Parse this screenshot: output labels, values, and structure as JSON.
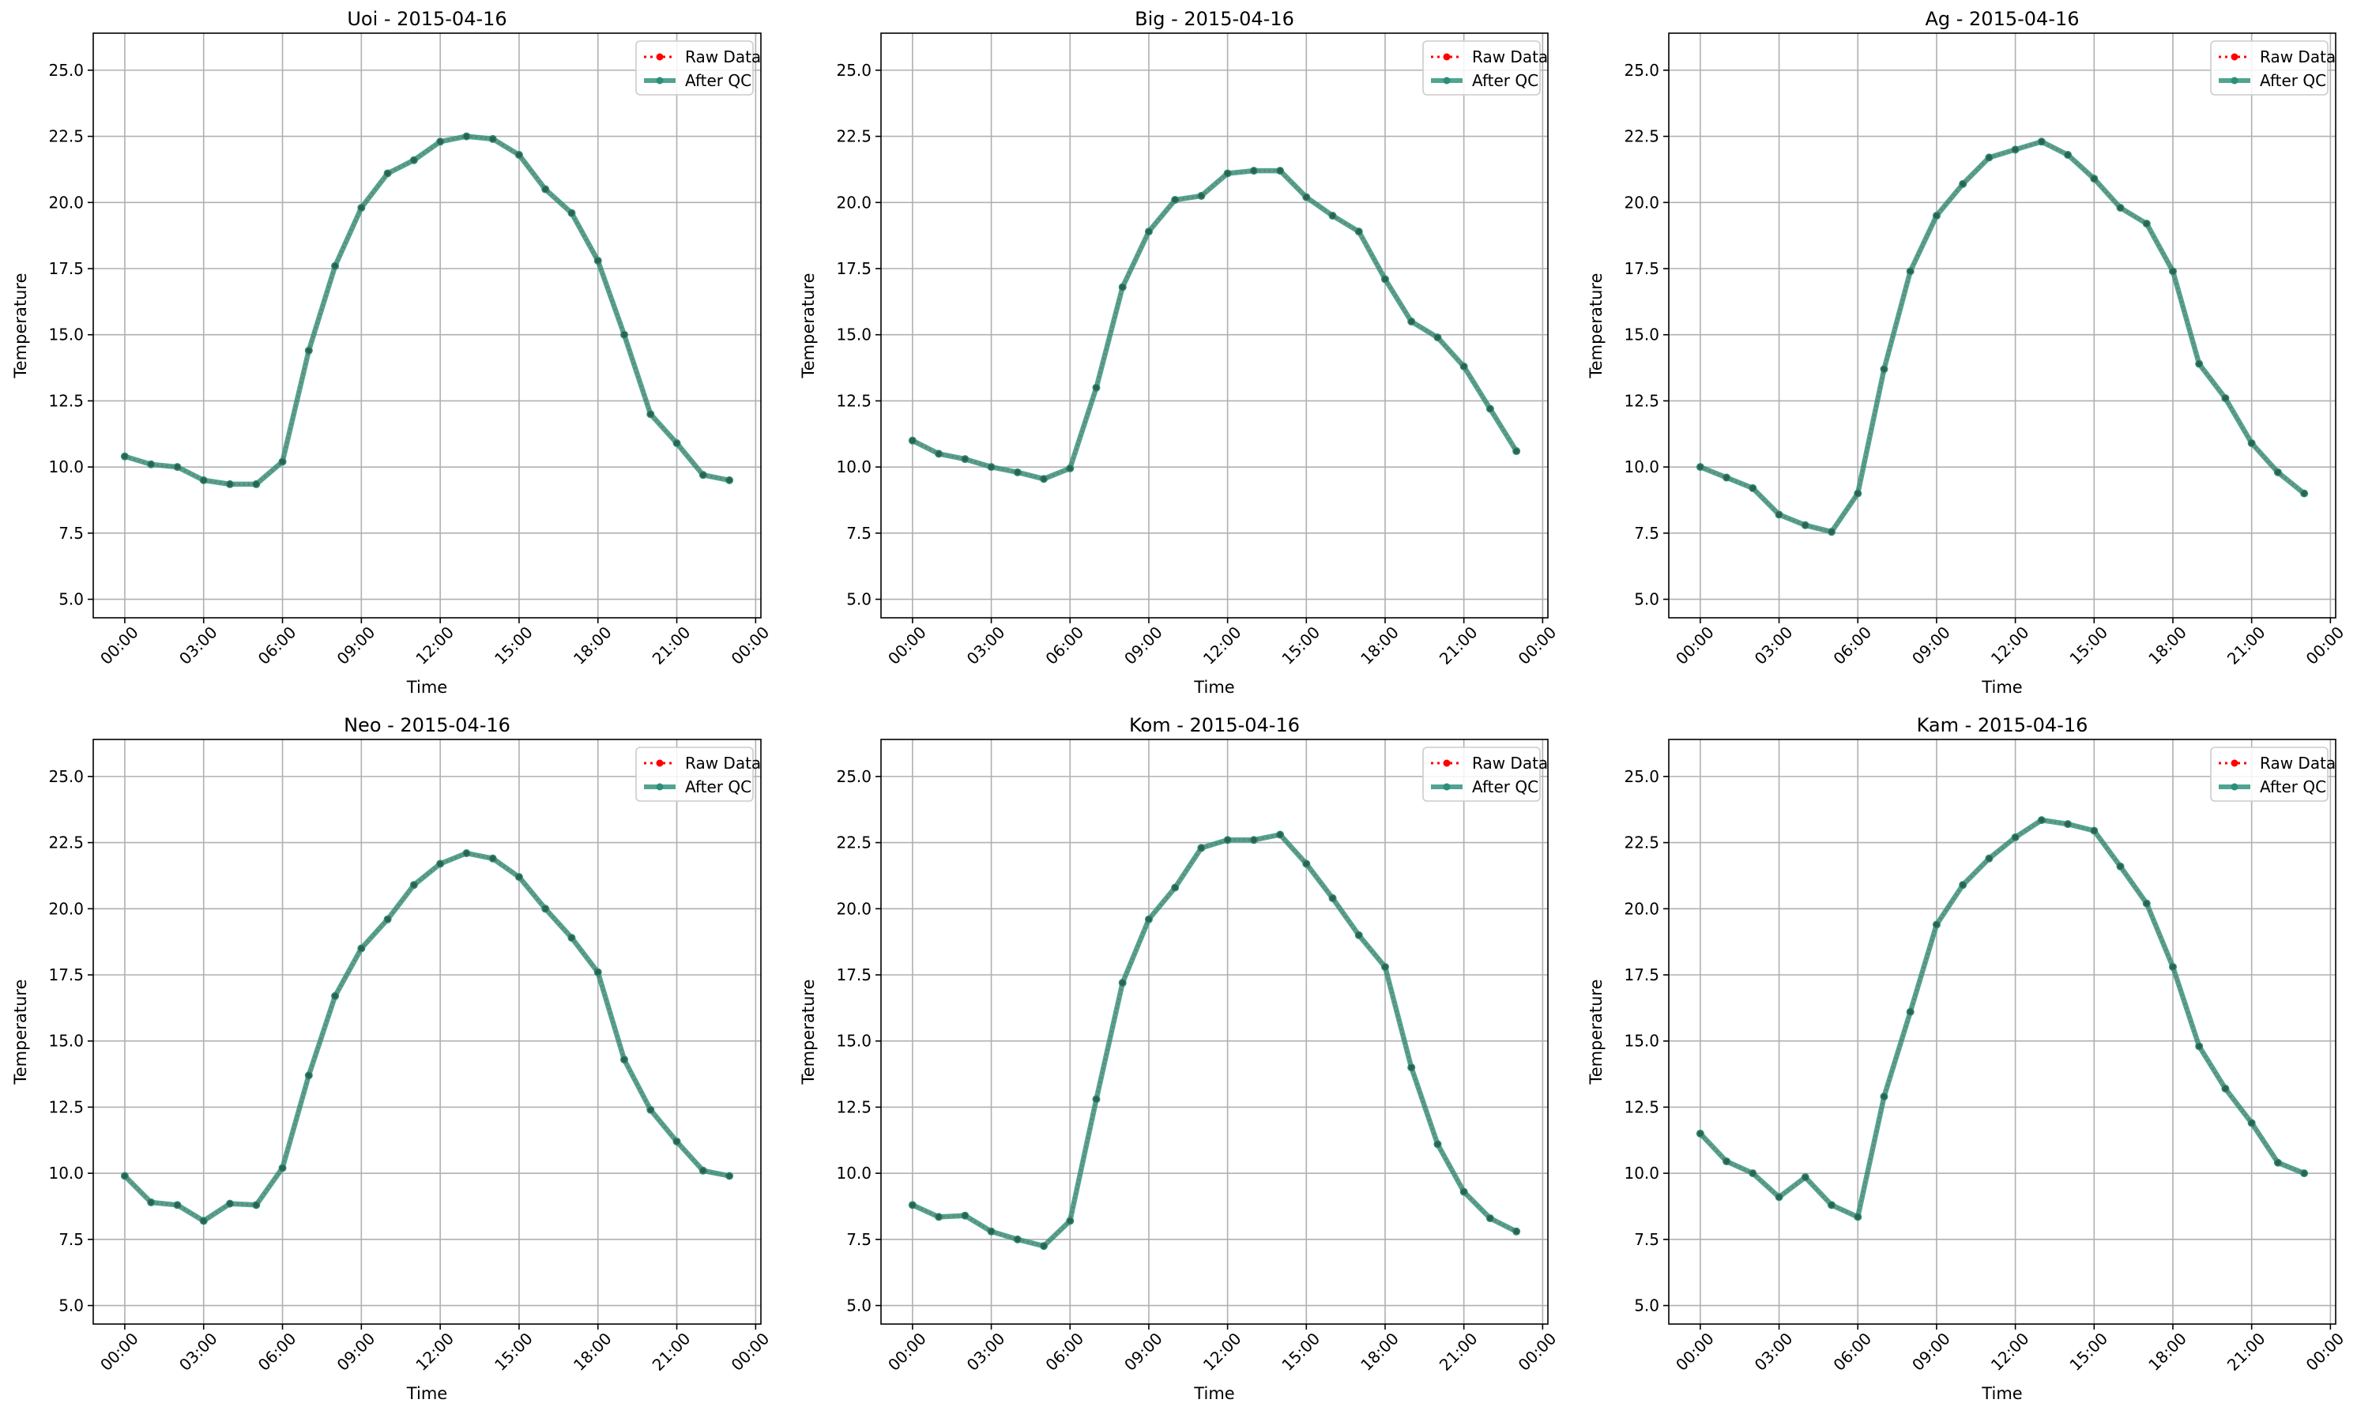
{
  "chart_data": [
    {
      "type": "line",
      "title": "Uoi - 2015-04-16",
      "xlabel": "Time",
      "ylabel": "Temperature",
      "x_hours": [
        0,
        1,
        2,
        3,
        4,
        5,
        6,
        7,
        8,
        9,
        10,
        11,
        12,
        13,
        14,
        15,
        16,
        17,
        18,
        19,
        20,
        21,
        22,
        23
      ],
      "x_range_hours": [
        -1.2,
        24.2
      ],
      "x_ticks": [
        "00:00",
        "03:00",
        "06:00",
        "09:00",
        "12:00",
        "15:00",
        "18:00",
        "21:00",
        "00:00"
      ],
      "y_ticks": [
        "5.0",
        "7.5",
        "10.0",
        "12.5",
        "15.0",
        "17.5",
        "20.0",
        "22.5",
        "25.0"
      ],
      "ylim": [
        4.3,
        26.4
      ],
      "grid": true,
      "legend": "top-right",
      "series": [
        {
          "name": "Raw Data",
          "color": "#ff0000",
          "values": [
            10.4,
            10.1,
            10.0,
            9.5,
            9.35,
            9.35,
            10.2,
            14.4,
            17.6,
            19.8,
            21.1,
            21.6,
            22.3,
            22.5,
            22.4,
            21.8,
            20.5,
            19.6,
            17.8,
            15.0,
            12.0,
            10.9,
            9.7,
            9.5
          ]
        },
        {
          "name": "After QC",
          "color": "#2a9078",
          "values": [
            10.4,
            10.1,
            10.0,
            9.5,
            9.35,
            9.35,
            10.2,
            14.4,
            17.6,
            19.8,
            21.1,
            21.6,
            22.3,
            22.5,
            22.4,
            21.8,
            20.5,
            19.6,
            17.8,
            15.0,
            12.0,
            10.9,
            9.7,
            9.5
          ]
        }
      ]
    },
    {
      "type": "line",
      "title": "Big - 2015-04-16",
      "xlabel": "Time",
      "ylabel": "Temperature",
      "x_hours": [
        0,
        1,
        2,
        3,
        4,
        5,
        6,
        7,
        8,
        9,
        10,
        11,
        12,
        13,
        14,
        15,
        16,
        17,
        18,
        19,
        20,
        21,
        22,
        23
      ],
      "x_range_hours": [
        -1.2,
        24.2
      ],
      "x_ticks": [
        "00:00",
        "03:00",
        "06:00",
        "09:00",
        "12:00",
        "15:00",
        "18:00",
        "21:00",
        "00:00"
      ],
      "y_ticks": [
        "5.0",
        "7.5",
        "10.0",
        "12.5",
        "15.0",
        "17.5",
        "20.0",
        "22.5",
        "25.0"
      ],
      "ylim": [
        4.3,
        26.4
      ],
      "grid": true,
      "legend": "top-right",
      "series": [
        {
          "name": "Raw Data",
          "color": "#ff0000",
          "values": [
            11.0,
            10.5,
            10.3,
            10.0,
            9.8,
            9.55,
            9.95,
            13.0,
            16.8,
            18.9,
            20.1,
            20.25,
            21.1,
            21.2,
            21.2,
            20.2,
            19.5,
            18.9,
            17.1,
            15.5,
            14.9,
            13.8,
            12.2,
            10.6
          ]
        },
        {
          "name": "After QC",
          "color": "#2a9078",
          "values": [
            11.0,
            10.5,
            10.3,
            10.0,
            9.8,
            9.55,
            9.95,
            13.0,
            16.8,
            18.9,
            20.1,
            20.25,
            21.1,
            21.2,
            21.2,
            20.2,
            19.5,
            18.9,
            17.1,
            15.5,
            14.9,
            13.8,
            12.2,
            10.6
          ]
        }
      ]
    },
    {
      "type": "line",
      "title": "Ag - 2015-04-16",
      "xlabel": "Time",
      "ylabel": "Temperature",
      "x_hours": [
        0,
        1,
        2,
        3,
        4,
        5,
        6,
        7,
        8,
        9,
        10,
        11,
        12,
        13,
        14,
        15,
        16,
        17,
        18,
        19,
        20,
        21,
        22,
        23
      ],
      "x_range_hours": [
        -1.2,
        24.2
      ],
      "x_ticks": [
        "00:00",
        "03:00",
        "06:00",
        "09:00",
        "12:00",
        "15:00",
        "18:00",
        "21:00",
        "00:00"
      ],
      "y_ticks": [
        "5.0",
        "7.5",
        "10.0",
        "12.5",
        "15.0",
        "17.5",
        "20.0",
        "22.5",
        "25.0"
      ],
      "ylim": [
        4.3,
        26.4
      ],
      "grid": true,
      "legend": "top-right",
      "series": [
        {
          "name": "Raw Data",
          "color": "#ff0000",
          "values": [
            10.0,
            9.6,
            9.2,
            8.2,
            7.8,
            7.55,
            9.0,
            13.7,
            17.4,
            19.5,
            20.7,
            21.7,
            22.0,
            22.3,
            21.8,
            20.9,
            19.8,
            19.2,
            17.4,
            13.9,
            12.6,
            10.9,
            9.8,
            9.0
          ]
        },
        {
          "name": "After QC",
          "color": "#2a9078",
          "values": [
            10.0,
            9.6,
            9.2,
            8.2,
            7.8,
            7.55,
            9.0,
            13.7,
            17.4,
            19.5,
            20.7,
            21.7,
            22.0,
            22.3,
            21.8,
            20.9,
            19.8,
            19.2,
            17.4,
            13.9,
            12.6,
            10.9,
            9.8,
            9.0
          ]
        }
      ]
    },
    {
      "type": "line",
      "title": "Neo - 2015-04-16",
      "xlabel": "Time",
      "ylabel": "Temperature",
      "x_hours": [
        0,
        1,
        2,
        3,
        4,
        5,
        6,
        7,
        8,
        9,
        10,
        11,
        12,
        13,
        14,
        15,
        16,
        17,
        18,
        19,
        20,
        21,
        22,
        23
      ],
      "x_range_hours": [
        -1.2,
        24.2
      ],
      "x_ticks": [
        "00:00",
        "03:00",
        "06:00",
        "09:00",
        "12:00",
        "15:00",
        "18:00",
        "21:00",
        "00:00"
      ],
      "y_ticks": [
        "5.0",
        "7.5",
        "10.0",
        "12.5",
        "15.0",
        "17.5",
        "20.0",
        "22.5",
        "25.0"
      ],
      "ylim": [
        4.3,
        26.4
      ],
      "grid": true,
      "legend": "top-right",
      "series": [
        {
          "name": "Raw Data",
          "color": "#ff0000",
          "values": [
            9.9,
            8.9,
            8.8,
            8.2,
            8.85,
            8.8,
            10.2,
            13.7,
            16.7,
            18.5,
            19.6,
            20.9,
            21.7,
            22.1,
            21.9,
            21.2,
            20.0,
            18.9,
            17.6,
            14.3,
            12.4,
            11.2,
            10.1,
            9.9
          ]
        },
        {
          "name": "After QC",
          "color": "#2a9078",
          "values": [
            9.9,
            8.9,
            8.8,
            8.2,
            8.85,
            8.8,
            10.2,
            13.7,
            16.7,
            18.5,
            19.6,
            20.9,
            21.7,
            22.1,
            21.9,
            21.2,
            20.0,
            18.9,
            17.6,
            14.3,
            12.4,
            11.2,
            10.1,
            9.9
          ]
        }
      ]
    },
    {
      "type": "line",
      "title": "Kom - 2015-04-16",
      "xlabel": "Time",
      "ylabel": "Temperature",
      "x_hours": [
        0,
        1,
        2,
        3,
        4,
        5,
        6,
        7,
        8,
        9,
        10,
        11,
        12,
        13,
        14,
        15,
        16,
        17,
        18,
        19,
        20,
        21,
        22,
        23
      ],
      "x_range_hours": [
        -1.2,
        24.2
      ],
      "x_ticks": [
        "00:00",
        "03:00",
        "06:00",
        "09:00",
        "12:00",
        "15:00",
        "18:00",
        "21:00",
        "00:00"
      ],
      "y_ticks": [
        "5.0",
        "7.5",
        "10.0",
        "12.5",
        "15.0",
        "17.5",
        "20.0",
        "22.5",
        "25.0"
      ],
      "ylim": [
        4.3,
        26.4
      ],
      "grid": true,
      "legend": "top-right",
      "series": [
        {
          "name": "Raw Data",
          "color": "#ff0000",
          "values": [
            8.8,
            8.35,
            8.4,
            7.8,
            7.5,
            7.25,
            8.2,
            12.8,
            17.2,
            19.6,
            20.8,
            22.3,
            22.6,
            22.6,
            22.8,
            21.7,
            20.4,
            19.0,
            17.8,
            14.0,
            11.1,
            9.3,
            8.3,
            7.8
          ]
        },
        {
          "name": "After QC",
          "color": "#2a9078",
          "values": [
            8.8,
            8.35,
            8.4,
            7.8,
            7.5,
            7.25,
            8.2,
            12.8,
            17.2,
            19.6,
            20.8,
            22.3,
            22.6,
            22.6,
            22.8,
            21.7,
            20.4,
            19.0,
            17.8,
            14.0,
            11.1,
            9.3,
            8.3,
            7.8
          ]
        }
      ]
    },
    {
      "type": "line",
      "title": "Kam - 2015-04-16",
      "xlabel": "Time",
      "ylabel": "Temperature",
      "x_hours": [
        0,
        1,
        2,
        3,
        4,
        5,
        6,
        7,
        8,
        9,
        10,
        11,
        12,
        13,
        14,
        15,
        16,
        17,
        18,
        19,
        20,
        21,
        22,
        23
      ],
      "x_range_hours": [
        -1.2,
        24.2
      ],
      "x_ticks": [
        "00:00",
        "03:00",
        "06:00",
        "09:00",
        "12:00",
        "15:00",
        "18:00",
        "21:00",
        "00:00"
      ],
      "y_ticks": [
        "5.0",
        "7.5",
        "10.0",
        "12.5",
        "15.0",
        "17.5",
        "20.0",
        "22.5",
        "25.0"
      ],
      "ylim": [
        4.3,
        26.4
      ],
      "grid": true,
      "legend": "top-right",
      "series": [
        {
          "name": "Raw Data",
          "color": "#ff0000",
          "values": [
            11.5,
            10.45,
            10.0,
            9.1,
            9.85,
            8.8,
            8.35,
            12.9,
            16.1,
            19.4,
            20.9,
            21.9,
            22.7,
            23.35,
            23.2,
            22.95,
            21.6,
            20.2,
            17.8,
            14.8,
            13.2,
            11.9,
            10.4,
            10.0
          ]
        },
        {
          "name": "After QC",
          "color": "#2a9078",
          "values": [
            11.5,
            10.45,
            10.0,
            9.1,
            9.85,
            8.8,
            8.35,
            12.9,
            16.1,
            19.4,
            20.9,
            21.9,
            22.7,
            23.35,
            23.2,
            22.95,
            21.6,
            20.2,
            17.8,
            14.8,
            13.2,
            11.9,
            10.4,
            10.0
          ]
        }
      ]
    }
  ]
}
